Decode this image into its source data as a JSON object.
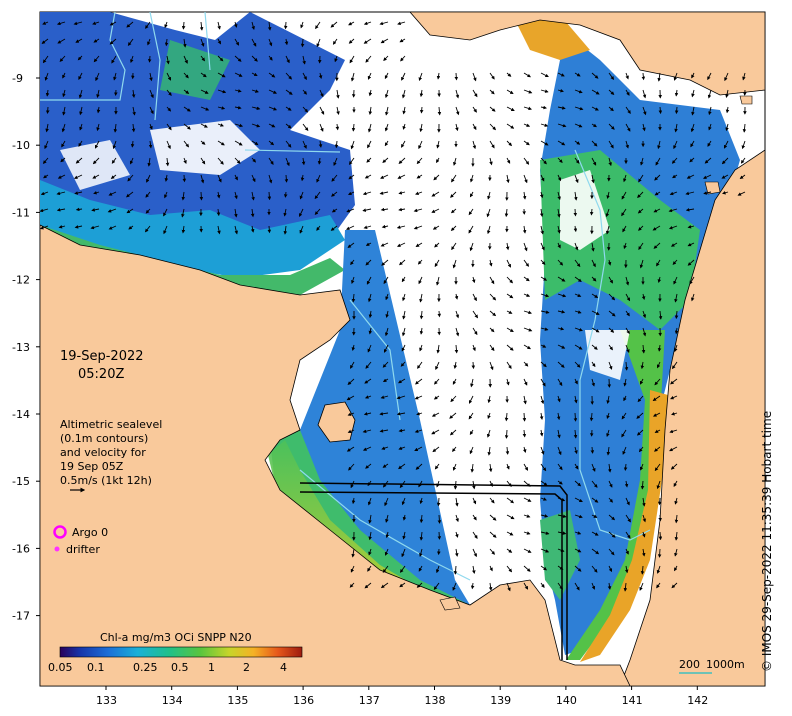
{
  "map": {
    "date": "19-Sep-2022",
    "time": "05:20Z",
    "altimetry_lines": [
      "Altimetric sealevel",
      "(0.1m contours)",
      "and velocity for",
      "19 Sep 05Z",
      "0.5m/s (1kt 12h)"
    ],
    "legend": {
      "argo_label": "Argo 0",
      "drifter_label": "drifter",
      "argo_color": "#ff00ff",
      "drifter_color": "#ff33ff"
    },
    "colorbar": {
      "title": "Chl-a mg/m3 OCi SNPP N20",
      "ticks": [
        "0.05",
        "0.1",
        "0.25",
        "0.5",
        "1",
        "2",
        "4"
      ]
    },
    "scale_bar": {
      "label": "200",
      "contour_label": "1000m"
    },
    "x_ticks": [
      "133",
      "134",
      "135",
      "136",
      "137",
      "138",
      "139",
      "140",
      "141",
      "142"
    ],
    "y_ticks": [
      "-9",
      "-10",
      "-11",
      "-12",
      "-13",
      "-14",
      "-15",
      "-16",
      "-17"
    ],
    "credit": "© IMOS 29-Sep-2022 11:35:39 Hobart time",
    "colors": {
      "land": "#f9c99b",
      "water": "#ffffff",
      "chl_low": "#1f4fc8",
      "chl_mid": "#3aa86b",
      "chl_high": "#e2561a",
      "contour": "#8fd9ee",
      "scale_line": "#40c0c0"
    }
  }
}
